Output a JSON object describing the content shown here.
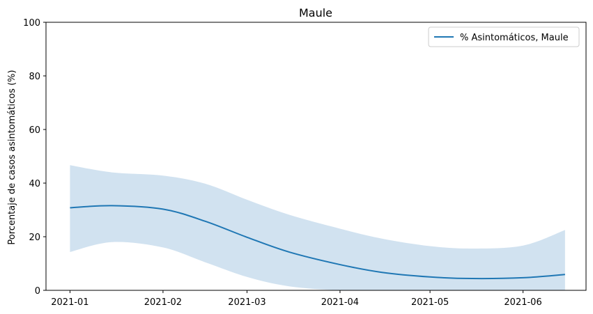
{
  "chart_data": {
    "type": "line",
    "title": "Maule",
    "xlabel": "",
    "ylabel": "Porcentaje de casos asintomáticos (%)",
    "ylim": [
      0,
      100
    ],
    "xlim": [
      "2020-12-24",
      "2021-06-22"
    ],
    "x_ticks": [
      "2021-01",
      "2021-02",
      "2021-03",
      "2021-04",
      "2021-05",
      "2021-06"
    ],
    "y_ticks": [
      0,
      20,
      40,
      60,
      80,
      100
    ],
    "grid": false,
    "legend_position": "top-right",
    "series": [
      {
        "name": "% Asintomáticos, Maule",
        "color": "#1f77b4",
        "band_color": "#c6dbec",
        "x": [
          "2021-01-01",
          "2021-01-15",
          "2021-02-01",
          "2021-02-15",
          "2021-03-01",
          "2021-03-15",
          "2021-04-01",
          "2021-04-15",
          "2021-05-01",
          "2021-05-15",
          "2021-06-01",
          "2021-06-15"
        ],
        "y": [
          30.8,
          31.6,
          30.3,
          25.8,
          19.8,
          14.3,
          9.6,
          6.7,
          5.0,
          4.4,
          4.7,
          5.9
        ],
        "lower": [
          14.3,
          18.0,
          16.0,
          10.5,
          5.0,
          1.5,
          0.0,
          0.0,
          0.0,
          0.0,
          0.0,
          0.0
        ],
        "upper": [
          46.7,
          44.0,
          42.8,
          39.8,
          33.8,
          28.2,
          23.0,
          19.3,
          16.5,
          15.6,
          16.7,
          22.5
        ]
      }
    ]
  }
}
